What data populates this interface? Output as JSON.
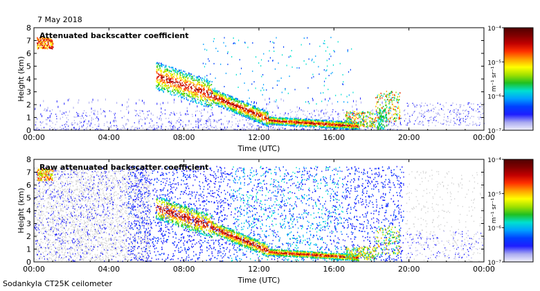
{
  "date_label": "7 May 2018",
  "footer": "Sodankyla CT25K ceilometer",
  "colors": {
    "jet": [
      "#f2f2ff",
      "#aaaaf0",
      "#1e1eff",
      "#0040ff",
      "#00a0ff",
      "#00e0d0",
      "#20c020",
      "#a0e000",
      "#ffff00",
      "#ffa000",
      "#ff3000",
      "#c00000",
      "#800000",
      "#500000"
    ],
    "noise": "#d0d0d0"
  },
  "chart_data": [
    {
      "type": "heatmap",
      "title": "Attenuated backscatter coefficient",
      "xlabel": "Time (UTC)",
      "ylabel": "Height (km)",
      "x_ticks": [
        "00:00",
        "04:00",
        "08:00",
        "12:00",
        "16:00",
        "20:00",
        "00:00"
      ],
      "y_ticks": [
        "0",
        "1",
        "2",
        "3",
        "4",
        "5",
        "6",
        "7",
        "8"
      ],
      "xlim_hours": [
        0,
        24
      ],
      "ylim": [
        0,
        8
      ],
      "colorbar": {
        "unit_label": "m⁻¹ sr⁻¹",
        "scale": "log",
        "ticks": [
          "10⁻⁷",
          "10⁻⁶",
          "10⁻⁵",
          "10⁻⁴"
        ]
      },
      "layers": [
        {
          "t_start": 6.6,
          "t_end": 9.5,
          "h_bottom": 2.4,
          "h_top": 5.2,
          "level": 9
        },
        {
          "t_start": 9.5,
          "t_end": 12.5,
          "h_bottom": 0.6,
          "h_top": 2.8,
          "level": 10
        },
        {
          "t_start": 12.5,
          "t_end": 17.2,
          "h_bottom": 0.1,
          "h_top": 0.6,
          "level": 10
        },
        {
          "t_start": 18.3,
          "t_end": 19.4,
          "h_bottom": 1.4,
          "h_top": 3.0,
          "level": 7
        },
        {
          "t_start": 0.1,
          "t_end": 1.0,
          "h_bottom": 6.3,
          "h_top": 7.2,
          "level": 10
        }
      ]
    },
    {
      "type": "heatmap",
      "title": "Raw attenuated backscatter coefficient",
      "xlabel": "Time (UTC)",
      "ylabel": "Height (km)",
      "x_ticks": [
        "00:00",
        "04:00",
        "08:00",
        "12:00",
        "16:00",
        "20:00",
        "00:00"
      ],
      "y_ticks": [
        "0",
        "1",
        "2",
        "3",
        "4",
        "5",
        "6",
        "7",
        "8"
      ],
      "xlim_hours": [
        0,
        24
      ],
      "ylim": [
        0,
        8
      ],
      "colorbar": {
        "unit_label": "m⁻¹ sr⁻¹",
        "scale": "log",
        "ticks": [
          "10⁻⁷",
          "10⁻⁶",
          "10⁻⁵",
          "10⁻⁴"
        ]
      }
    }
  ]
}
